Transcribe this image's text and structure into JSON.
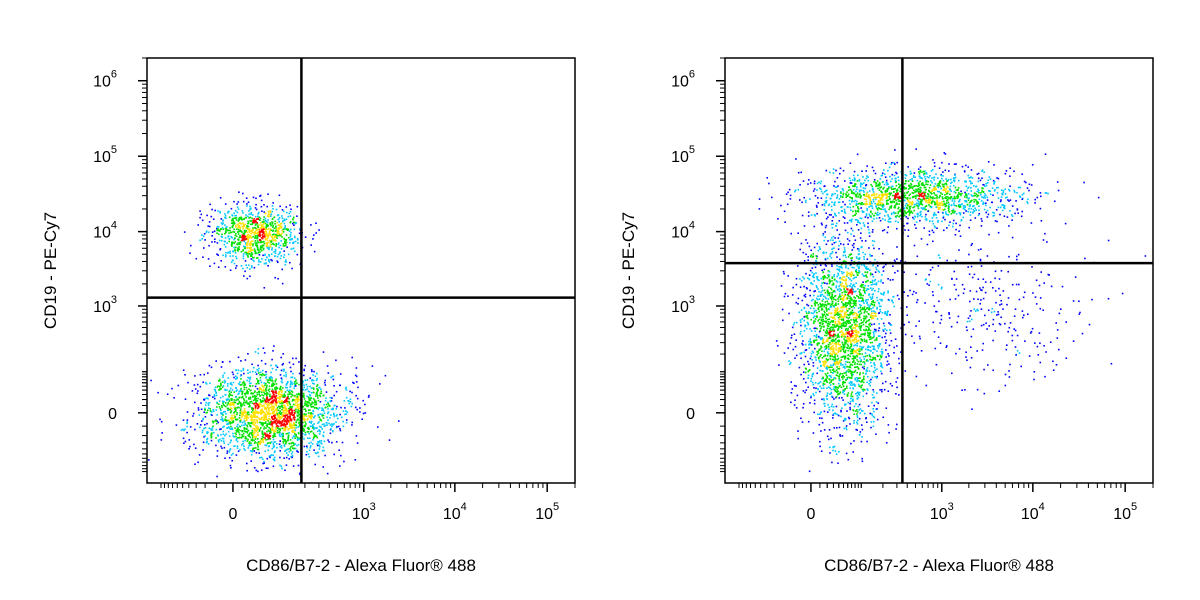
{
  "colors": {
    "density_low": "#0000ff",
    "density_mid_low": "#00c8ff",
    "density_mid": "#00e000",
    "density_mid_high": "#ffe000",
    "density_high": "#ff0000",
    "gate_lines": "#000000",
    "frame": "#000000"
  },
  "chart_data": [
    {
      "type": "scatter",
      "title": "",
      "xlabel": "CD86/B7-2 - Alexa Fluor® 488",
      "ylabel": "CD19 - PE-Cy7",
      "x_scale": "biexponential",
      "y_scale": "biexponential",
      "xlim": [
        -300,
        200000
      ],
      "ylim": [
        -300,
        2000000
      ],
      "x_ticks": [
        {
          "base": "0",
          "exp": ""
        },
        {
          "base": "10",
          "exp": "3"
        },
        {
          "base": "10",
          "exp": "4"
        },
        {
          "base": "10",
          "exp": "5"
        }
      ],
      "y_ticks": [
        {
          "base": "0",
          "exp": ""
        },
        {
          "base": "10",
          "exp": "3"
        },
        {
          "base": "10",
          "exp": "4"
        },
        {
          "base": "10",
          "exp": "5"
        },
        {
          "base": "10",
          "exp": "6"
        }
      ],
      "gates": {
        "x": 180,
        "y": 1300
      },
      "render": "density pseudocolor dot plot",
      "populations": [
        {
          "x_center": 30,
          "y_center": 9500,
          "events": 950
        },
        {
          "x_center": 60,
          "y_center": 0,
          "events": 2300
        }
      ]
    },
    {
      "type": "scatter",
      "title": "",
      "xlabel": "CD86/B7-2 - Alexa Fluor® 488",
      "ylabel": "CD19 - PE-Cy7",
      "x_scale": "biexponential",
      "y_scale": "biexponential",
      "xlim": [
        -300,
        200000
      ],
      "ylim": [
        -300,
        2000000
      ],
      "x_ticks": [
        {
          "base": "0",
          "exp": ""
        },
        {
          "base": "10",
          "exp": "3"
        },
        {
          "base": "10",
          "exp": "4"
        },
        {
          "base": "10",
          "exp": "5"
        }
      ],
      "y_ticks": [
        {
          "base": "0",
          "exp": ""
        },
        {
          "base": "10",
          "exp": "3"
        },
        {
          "base": "10",
          "exp": "4"
        },
        {
          "base": "10",
          "exp": "5"
        },
        {
          "base": "10",
          "exp": "6"
        }
      ],
      "gates": {
        "x": 350,
        "y": 3800
      },
      "render": "density pseudocolor dot plot",
      "populations": [
        {
          "x_center": 450,
          "y_center": 30000,
          "events": 1500
        },
        {
          "x_center": 50,
          "y_center": 500,
          "events": 2400
        },
        {
          "x_center": 2500,
          "y_center": 900,
          "events": 320
        }
      ]
    }
  ]
}
